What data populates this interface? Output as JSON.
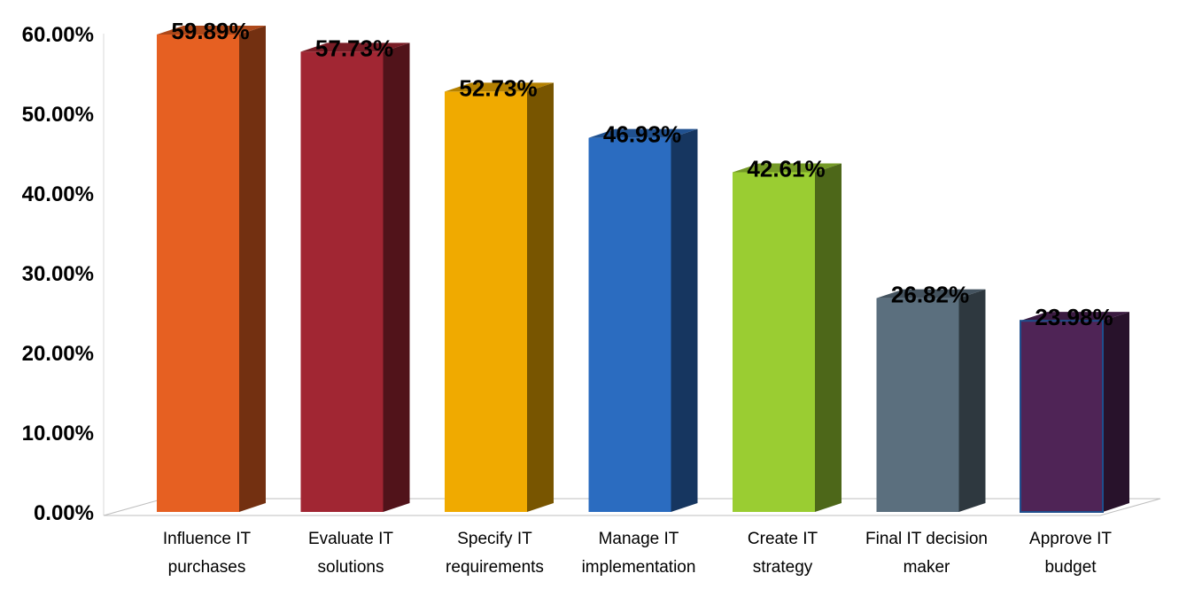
{
  "chart_data": {
    "type": "bar",
    "title": "",
    "xlabel": "",
    "ylabel": "",
    "ylim": [
      0,
      60
    ],
    "y_ticks": [
      "0.00%",
      "10.00%",
      "20.00%",
      "30.00%",
      "40.00%",
      "50.00%",
      "60.00%"
    ],
    "grid": false,
    "legend": "none",
    "categories": [
      [
        "Influence IT",
        "purchases"
      ],
      [
        "Evaluate IT",
        "solutions"
      ],
      [
        "Specify IT",
        "requirements"
      ],
      [
        "Manage IT",
        "implementation"
      ],
      [
        "Create IT",
        "strategy"
      ],
      [
        "Final IT decision",
        "maker"
      ],
      [
        "Approve IT",
        "budget"
      ]
    ],
    "values": [
      59.89,
      57.73,
      52.73,
      46.93,
      42.61,
      26.82,
      23.98
    ],
    "data_labels": [
      "59.89%",
      "57.73%",
      "52.73%",
      "46.93%",
      "42.61%",
      "26.82%",
      "23.98%"
    ],
    "colors": [
      "#E66022",
      "#A12633",
      "#F0AA00",
      "#2B6CC0",
      "#9ACD32",
      "#5B6F7E",
      "#4F2456"
    ]
  }
}
